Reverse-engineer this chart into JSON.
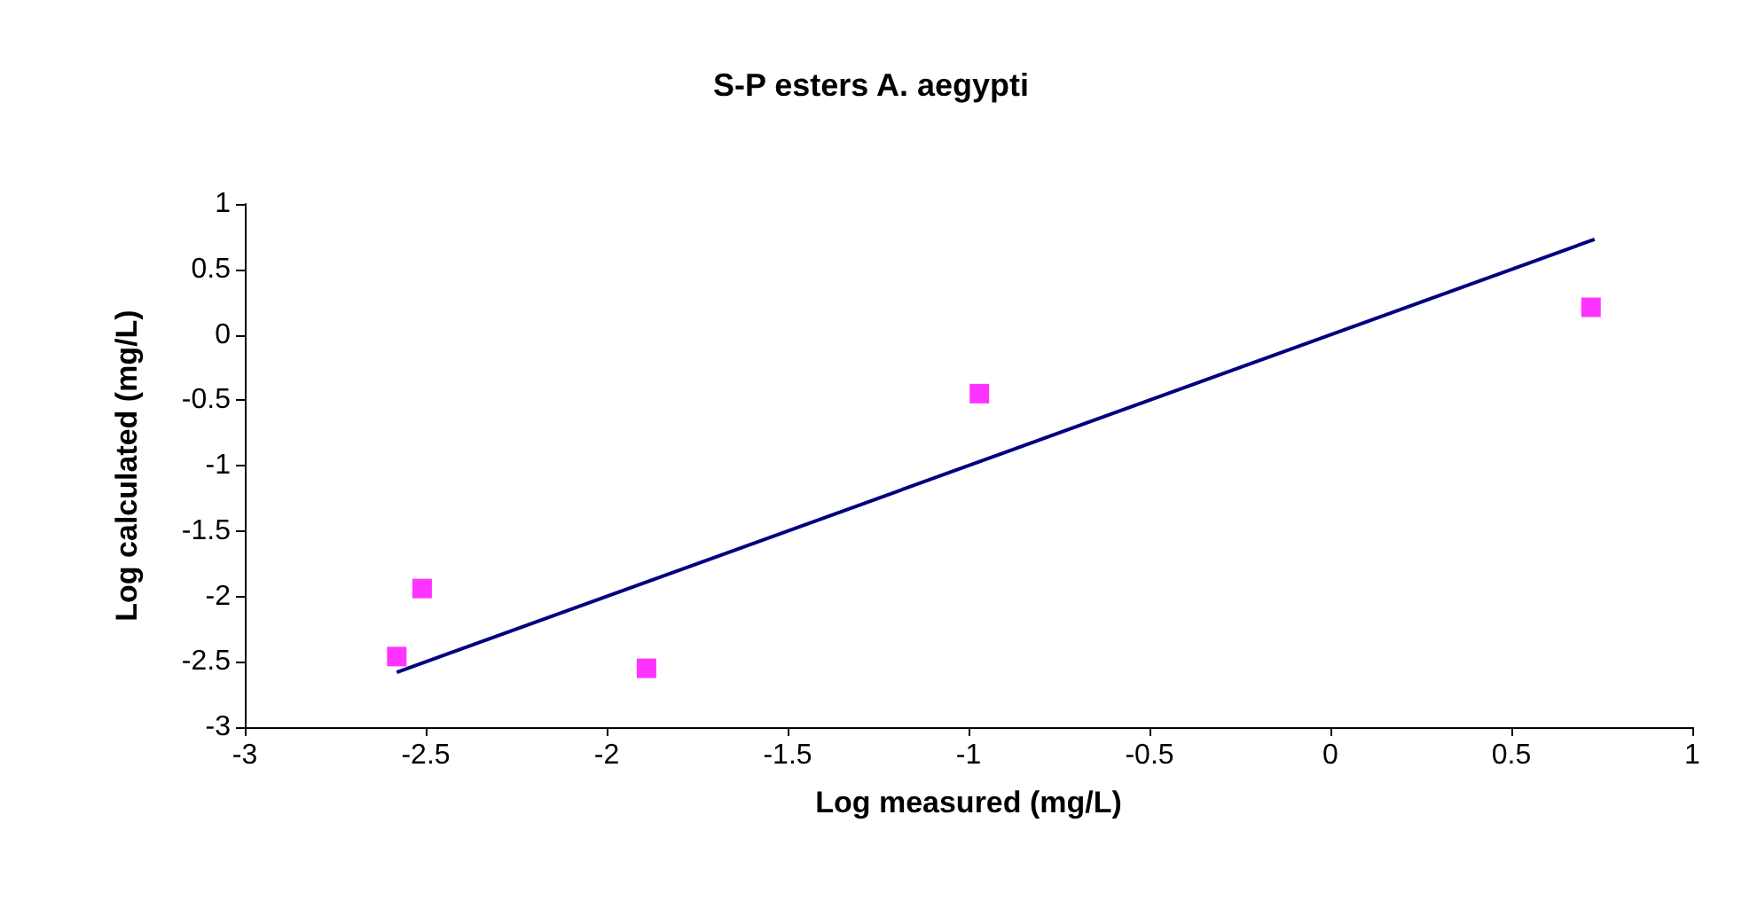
{
  "chart_data": {
    "type": "scatter",
    "title": "S-P esters A. aegypti",
    "xlabel": "Log measured (mg/L)",
    "ylabel": "Log calculated (mg/L)",
    "series": [
      {
        "type": "scatter",
        "color": "#ff00ff",
        "marker": "square",
        "x": [
          -2.58,
          -2.51,
          -1.89,
          -0.97,
          0.72
        ],
        "values": [
          -2.46,
          -1.94,
          -2.55,
          -0.45,
          0.21
        ]
      },
      {
        "type": "line",
        "color": "#000080",
        "marker": "none",
        "line_style": "solid",
        "x": [
          -2.58,
          0.73
        ],
        "values": [
          -2.58,
          0.73
        ]
      }
    ],
    "xlim": [
      -3,
      1
    ],
    "xticks": [
      -3,
      -2.5,
      -2,
      -1.5,
      -1,
      -0.5,
      0,
      0.5,
      1
    ],
    "ylim": [
      -3,
      1
    ],
    "yticks": [
      -3,
      -2.5,
      -2,
      -1.5,
      -1,
      -0.5,
      0,
      0.5,
      1
    ],
    "grid": false
  }
}
